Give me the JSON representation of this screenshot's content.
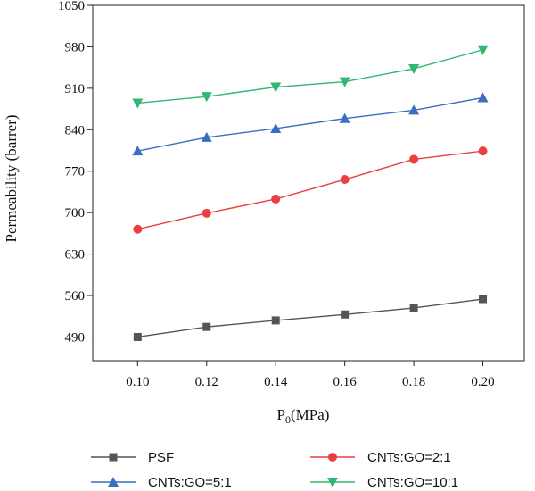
{
  "chart_data": {
    "type": "line",
    "xlabel_main": "P",
    "xlabel_sub": "0",
    "xlabel_unit": "(MPa)",
    "ylabel": "Permeability (barrer)",
    "x": [
      0.1,
      0.12,
      0.14,
      0.16,
      0.18,
      0.2
    ],
    "x_tick_labels": [
      "0.10",
      "0.12",
      "0.14",
      "0.16",
      "0.18",
      "0.20"
    ],
    "xlim": [
      0.087,
      0.212
    ],
    "y_ticks": [
      490,
      560,
      630,
      700,
      770,
      840,
      910,
      980,
      1050
    ],
    "ylim": [
      450,
      1050
    ],
    "grid": false,
    "legend_position": "bottom",
    "series": [
      {
        "name": "PSF",
        "color": "#555555",
        "marker": "square",
        "values": [
          490,
          507,
          518,
          528,
          539,
          554
        ]
      },
      {
        "name": "CNTs:GO=5:1",
        "color": "#3a6fbf",
        "marker": "triangle-up",
        "values": [
          804,
          827,
          842,
          859,
          873,
          894
        ]
      },
      {
        "name": "CNTs:GO=2:1",
        "color": "#e84040",
        "marker": "circle",
        "values": [
          672,
          699,
          723,
          756,
          790,
          804
        ]
      },
      {
        "name": "CNTs:GO=10:1",
        "color": "#2eb872",
        "marker": "triangle-down",
        "values": [
          885,
          896,
          912,
          921,
          943,
          975
        ]
      }
    ]
  }
}
